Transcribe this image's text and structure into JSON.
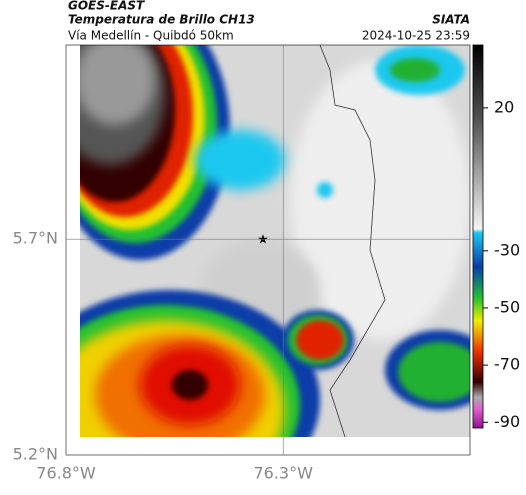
{
  "header": {
    "source": "GOES-EAST",
    "title": "Temperatura de Brillo CH13",
    "org": "SIATA",
    "subtitle": "Vía Medellín - Quibdó 50km",
    "timestamp": "2024-10-25 23:59"
  },
  "map": {
    "xlim": [
      -76.8,
      -75.87
    ],
    "ylim": [
      5.2,
      6.15
    ],
    "xticks": [
      {
        "value": -76.8,
        "label": "76.8°W"
      },
      {
        "value": -76.3,
        "label": "76.3°W"
      }
    ],
    "yticks": [
      {
        "value": 5.2,
        "label": "5.2°N"
      },
      {
        "value": 5.7,
        "label": "5.7°N"
      }
    ],
    "grid": true
  },
  "colorbar": {
    "lim": [
      -92,
      42
    ],
    "ticks": [
      20,
      -30,
      -50,
      -70,
      -90
    ]
  }
}
